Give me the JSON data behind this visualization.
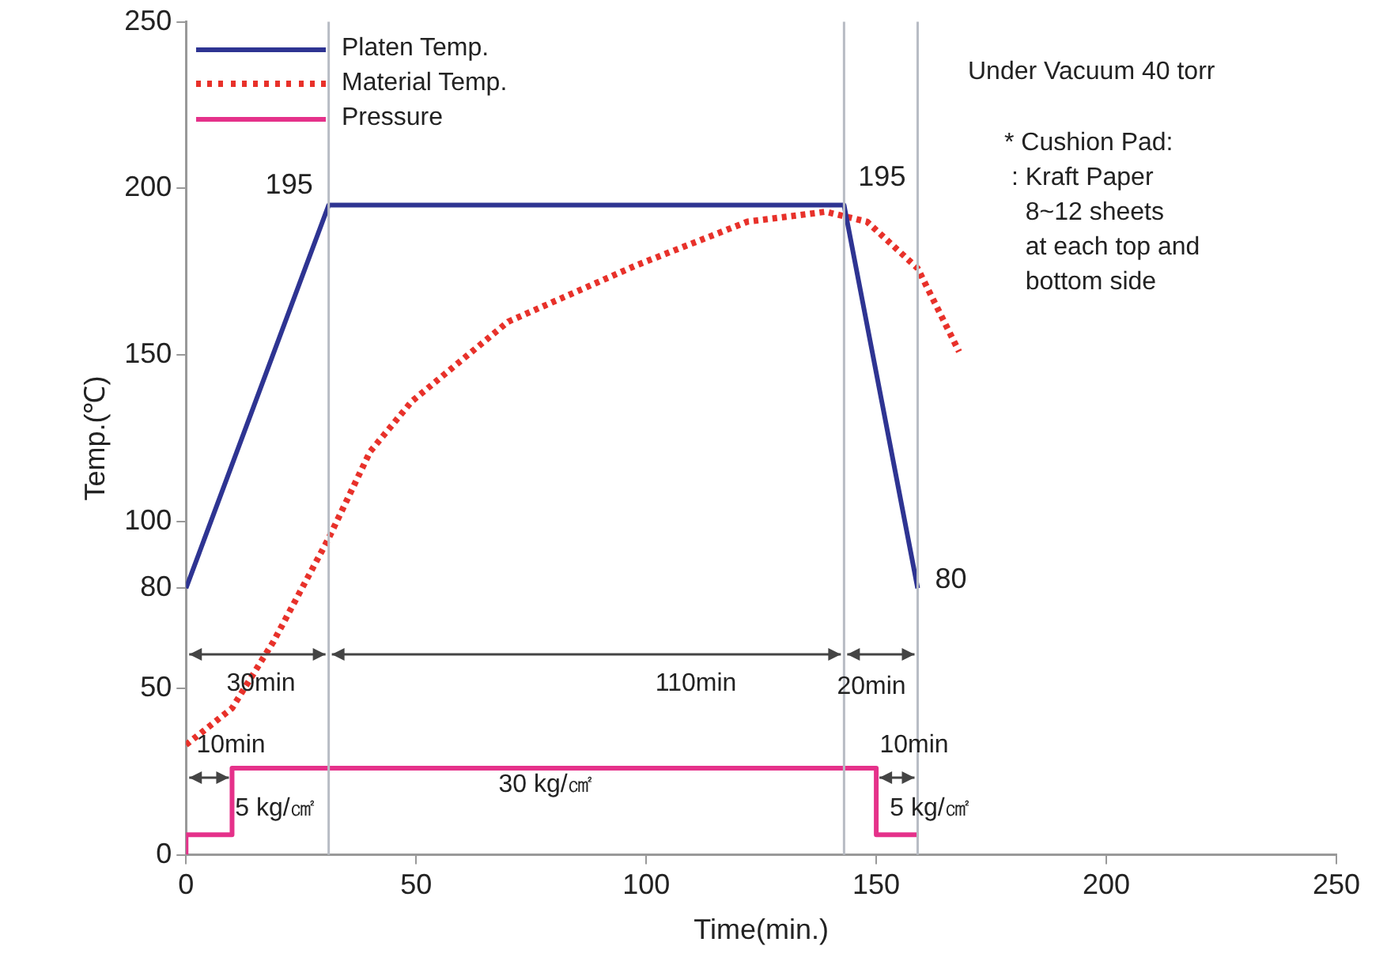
{
  "chart_data": {
    "type": "line",
    "xlabel": "Time(min.)",
    "ylabel": "Temp.(℃)",
    "xlim": [
      0,
      250
    ],
    "xticks": [
      0,
      50,
      100,
      150,
      200,
      250
    ],
    "ylim": [
      0,
      250
    ],
    "yticks": [
      0,
      50,
      80,
      100,
      150,
      200,
      250
    ],
    "grid": false,
    "legend": "top left",
    "marker": "none",
    "series": [
      {
        "name": "Platen Temp.",
        "color": "#2e3492",
        "x": [
          0,
          31,
          143,
          159
        ],
        "values": [
          80,
          195,
          195,
          80
        ]
      },
      {
        "name": "Material Temp.",
        "color": "#e8312a",
        "line_style": "dotted",
        "x": [
          0,
          10,
          19,
          31,
          40,
          49,
          70,
          98,
          122,
          139,
          148,
          159,
          168
        ],
        "values": [
          33,
          44,
          64,
          95,
          121,
          136,
          160,
          177,
          190,
          193,
          190,
          176,
          151
        ]
      },
      {
        "name": "Pressure",
        "color": "#e5318a",
        "x": [
          0,
          0,
          10,
          10,
          150,
          150,
          159
        ],
        "values": [
          0,
          6,
          6,
          26,
          26,
          6,
          6
        ]
      }
    ],
    "ref_lines": [
      {
        "axis": "x",
        "value": 31,
        "color": "#b8bcc4"
      },
      {
        "axis": "x",
        "value": 143,
        "color": "#b8bcc4"
      },
      {
        "axis": "x",
        "value": 159,
        "color": "#b8bcc4"
      }
    ],
    "annotations": [
      {
        "text": "195",
        "x": 31,
        "y": 195
      },
      {
        "text": "195",
        "x": 143,
        "y": 195
      },
      {
        "text": "80",
        "x": 159,
        "y": 80
      },
      "30min",
      "110min",
      "20min",
      "10min",
      "10min",
      "5 kg/㎠",
      "30 kg/㎠",
      "5 kg/㎠",
      "Under Vacuum 40 torr",
      "* Cushion Pad:\n : Kraft Paper\n   8~12 sheets\n   at each top and\n   bottom side"
    ]
  }
}
